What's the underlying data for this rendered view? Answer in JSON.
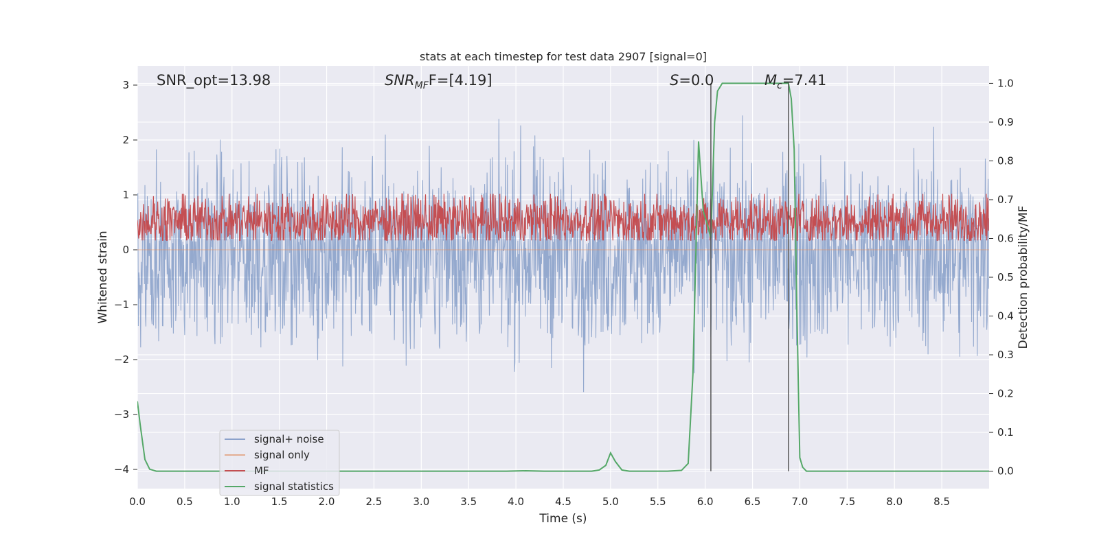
{
  "chart_data": {
    "type": "line",
    "title": "stats at each timestep for test data 2907 [signal=0]",
    "xlabel": "Time (s)",
    "ylabel_left": "Whitened strain",
    "ylabel_right": "Detection probability/MF",
    "xlim": [
      0.0,
      9.0
    ],
    "ylim_left": [
      -4.35,
      3.35
    ],
    "ylim_right": [
      -0.045,
      1.045
    ],
    "x_ticks": [
      0.0,
      0.5,
      1.0,
      1.5,
      2.0,
      2.5,
      3.0,
      3.5,
      4.0,
      4.5,
      5.0,
      5.5,
      6.0,
      6.5,
      7.0,
      7.5,
      8.0,
      8.5
    ],
    "x_tick_labels": [
      "0.0",
      "0.5",
      "1.0",
      "1.5",
      "2.0",
      "2.5",
      "3.0",
      "3.5",
      "4.0",
      "4.5",
      "5.0",
      "5.5",
      "6.0",
      "6.5",
      "7.0",
      "7.5",
      "8.0",
      "8.5"
    ],
    "y_left_ticks": [
      3,
      2,
      1,
      0,
      -1,
      -2,
      -3,
      -4
    ],
    "y_left_tick_labels": [
      "3",
      "2",
      "1",
      "0",
      "−1",
      "−2",
      "−3",
      "−4"
    ],
    "y_right_ticks": [
      1.0,
      0.9,
      0.8,
      0.7,
      0.6,
      0.5,
      0.4,
      0.3,
      0.2,
      0.1,
      0.0
    ],
    "y_right_tick_labels": [
      "1.0",
      "0.9",
      "0.8",
      "0.7",
      "0.6",
      "0.5",
      "0.4",
      "0.3",
      "0.2",
      "0.1",
      "0.0"
    ],
    "grid": true,
    "legend_placement": "lower-left",
    "annotations": {
      "snr_opt": "SNR_opt=13.98",
      "snr_mf_italic": "SNR",
      "snr_mf_sub": "MF",
      "snr_mf_rest": "F=[4.19]",
      "s_italic": "S",
      "s_rest": "=0.0",
      "mc_italic": "M",
      "mc_sub": "c",
      "mc_rest": "=7.41"
    },
    "vertical_markers_x": [
      6.06,
      6.88
    ],
    "series": [
      {
        "name": "signal+ noise",
        "color": "#4c72b0",
        "axis": "left",
        "kind": "noise",
        "center": -0.05,
        "spread": 0.85,
        "peak_up": 2.9,
        "peak_down": -3.4
      },
      {
        "name": "signal only",
        "color": "#dd8452",
        "axis": "left",
        "kind": "flat",
        "value": 0.0
      },
      {
        "name": "MF",
        "color": "#c44e52",
        "axis": "right",
        "kind": "noise",
        "center": 0.645,
        "spread": 0.035,
        "peak_up": 0.715,
        "peak_down": 0.595
      },
      {
        "name": "signal statistics",
        "color": "#55a868",
        "axis": "right",
        "kind": "line",
        "x": [
          0.0,
          0.03,
          0.08,
          0.13,
          0.2,
          0.4,
          1.0,
          2.0,
          3.0,
          3.9,
          4.1,
          4.3,
          4.8,
          4.88,
          4.95,
          5.0,
          5.05,
          5.12,
          5.2,
          5.4,
          5.6,
          5.75,
          5.82,
          5.87,
          5.93,
          5.98,
          6.03,
          6.06,
          6.1,
          6.13,
          6.18,
          6.25,
          6.5,
          6.7,
          6.88,
          6.91,
          6.94,
          6.97,
          7.0,
          7.03,
          7.07,
          7.2,
          7.5,
          8.0,
          8.5,
          9.0
        ],
        "y": [
          0.18,
          0.12,
          0.03,
          0.005,
          0.0,
          0.0,
          0.0,
          0.0,
          0.0,
          0.0,
          0.001,
          0.0,
          0.0,
          0.003,
          0.015,
          0.047,
          0.025,
          0.003,
          0.0,
          0.0,
          0.0,
          0.002,
          0.02,
          0.25,
          0.85,
          0.67,
          0.63,
          0.6,
          0.9,
          0.98,
          1.0,
          1.0,
          1.0,
          1.0,
          1.0,
          0.96,
          0.83,
          0.4,
          0.035,
          0.01,
          0.0,
          0.0,
          0.0,
          0.0,
          0.0,
          0.0
        ]
      }
    ]
  }
}
